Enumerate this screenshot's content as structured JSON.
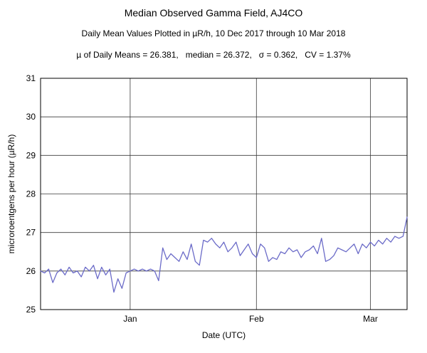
{
  "header": {
    "title": "Median Observed Gamma Field, AJ4CO",
    "subtitle": "Daily Mean Values Plotted in µR/h, 10 Dec 2017 through 10 Mar 2018",
    "stats": "µ of Daily Means = 26.381,   median = 26.372,   σ = 0.362,   CV = 1.37%"
  },
  "chart_data": {
    "type": "line",
    "title": "Median Observed Gamma Field, AJ4CO",
    "subtitle": "Daily Mean Values Plotted in µR/h, 10 Dec 2017 through 10 Mar 2018",
    "stats": {
      "mean_of_daily_means": 26.381,
      "median": 26.372,
      "sigma": 0.362,
      "cv_percent": 1.37
    },
    "xlabel": "Date (UTC)",
    "ylabel": "microroentgens per hour (µR/h)",
    "ylim": [
      25,
      31
    ],
    "y_ticks": [
      25,
      26,
      27,
      28,
      29,
      30,
      31
    ],
    "x_start_date": "10 Dec 2017",
    "x_end_date": "10 Mar 2018",
    "x_tick_labels": [
      "Jan",
      "Feb",
      "Mar"
    ],
    "x_tick_day_indices": [
      22,
      53,
      81
    ],
    "grid": true,
    "line_color": "#6b6bc8",
    "values": [
      26.0,
      25.95,
      26.05,
      25.7,
      25.95,
      26.05,
      25.9,
      26.1,
      25.95,
      26.0,
      25.85,
      26.1,
      26.0,
      26.15,
      25.8,
      26.1,
      25.9,
      26.05,
      25.45,
      25.8,
      25.55,
      25.95,
      26.0,
      26.05,
      26.0,
      26.05,
      26.0,
      26.05,
      26.0,
      25.75,
      26.6,
      26.3,
      26.45,
      26.35,
      26.25,
      26.5,
      26.3,
      26.7,
      26.25,
      26.15,
      26.8,
      26.75,
      26.85,
      26.7,
      26.6,
      26.75,
      26.5,
      26.6,
      26.75,
      26.4,
      26.55,
      26.7,
      26.45,
      26.35,
      26.7,
      26.6,
      26.25,
      26.35,
      26.3,
      26.5,
      26.45,
      26.6,
      26.5,
      26.55,
      26.35,
      26.5,
      26.55,
      26.65,
      26.45,
      26.85,
      26.25,
      26.3,
      26.4,
      26.6,
      26.55,
      26.5,
      26.6,
      26.7,
      26.45,
      26.7,
      26.6,
      26.75,
      26.65,
      26.8,
      26.7,
      26.85,
      26.75,
      26.9,
      26.85,
      26.9,
      27.4
    ]
  }
}
